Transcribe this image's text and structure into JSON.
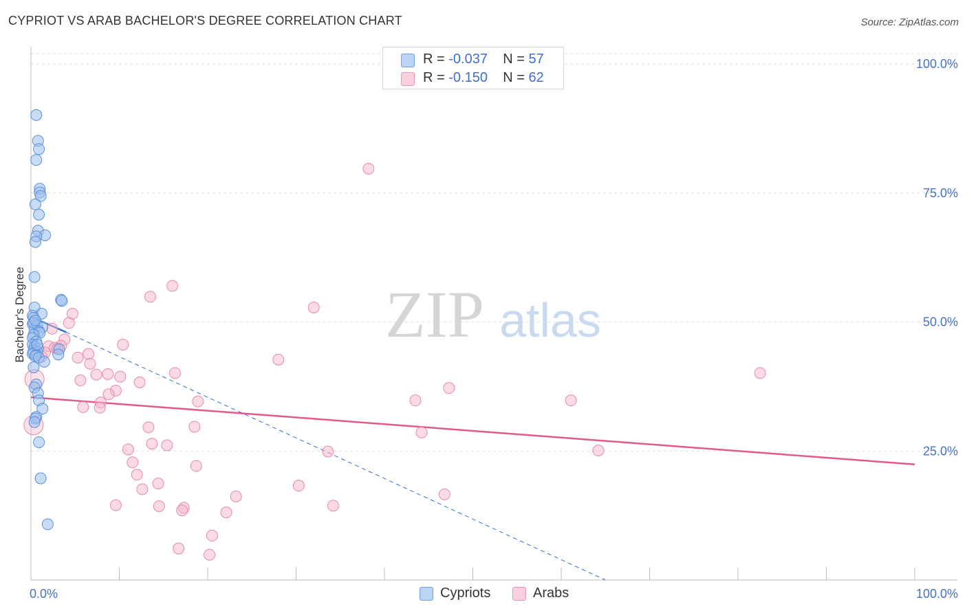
{
  "header": {
    "title": "CYPRIOT VS ARAB BACHELOR'S DEGREE CORRELATION CHART",
    "source": "Source: ZipAtlas.com"
  },
  "watermark": {
    "zip": "ZIP",
    "atlas": "atlas"
  },
  "legend": {
    "rows": [
      {
        "r_label": "R =",
        "r_value": "-0.037",
        "n_label": "N =",
        "n_value": "57",
        "color": "#9dc0ef"
      },
      {
        "r_label": "R =",
        "r_value": "-0.150",
        "n_label": "N =",
        "n_value": "62",
        "color": "#f6b6cb"
      }
    ]
  },
  "bottom_legend": {
    "cypriots": "Cypriots",
    "arabs": "Arabs"
  },
  "colors": {
    "blue_fill": "#9dc0ef",
    "blue_stroke": "#5b8fd8",
    "blue_line": "#2c6ed4",
    "pink_fill": "#f6b6cb",
    "pink_stroke": "#e58aa8",
    "pink_line": "#e05a8a",
    "tick_text": "#4472c4",
    "grid": "#dddddd"
  },
  "chart_data": {
    "type": "scatter",
    "title": "CYPRIOT VS ARAB BACHELOR'S DEGREE CORRELATION CHART",
    "xlabel": "",
    "ylabel": "Bachelor's Degree",
    "xlim": [
      0,
      100
    ],
    "ylim": [
      0,
      102
    ],
    "x_tick_labels": [
      "0.0%",
      "100.0%"
    ],
    "y_ticks": [
      25,
      50,
      75,
      100
    ],
    "y_tick_labels": [
      "25.0%",
      "50.0%",
      "75.0%",
      "100.0%"
    ],
    "series": [
      {
        "name": "Cypriots",
        "r": -0.037,
        "n": 57,
        "trend_solid": [
          [
            0,
            51.0
          ],
          [
            4,
            48.0
          ]
        ],
        "trend_dashed": [
          [
            4,
            48.0
          ],
          [
            65,
            0
          ]
        ],
        "points": [
          [
            0.6,
            90.1
          ],
          [
            0.8,
            85.1
          ],
          [
            0.9,
            83.5
          ],
          [
            0.6,
            81.4
          ],
          [
            1.0,
            75.8
          ],
          [
            1.0,
            75.1
          ],
          [
            1.1,
            74.4
          ],
          [
            0.5,
            72.8
          ],
          [
            0.9,
            70.8
          ],
          [
            0.8,
            67.7
          ],
          [
            1.6,
            66.8
          ],
          [
            0.6,
            66.6
          ],
          [
            0.5,
            65.5
          ],
          [
            0.4,
            58.7
          ],
          [
            3.4,
            54.3
          ],
          [
            3.5,
            54.1
          ],
          [
            0.4,
            52.8
          ],
          [
            1.2,
            51.6
          ],
          [
            0.2,
            51.2
          ],
          [
            0.3,
            50.8
          ],
          [
            0.2,
            49.6
          ],
          [
            0.7,
            49.3
          ],
          [
            1.3,
            49.0
          ],
          [
            0.4,
            48.6
          ],
          [
            0.9,
            48.2
          ],
          [
            1.0,
            47.9
          ],
          [
            0.3,
            47.5
          ],
          [
            0.2,
            46.9
          ],
          [
            0.6,
            46.2
          ],
          [
            0.2,
            45.6
          ],
          [
            0.4,
            45.2
          ],
          [
            0.8,
            44.8
          ],
          [
            0.3,
            44.5
          ],
          [
            0.7,
            44.2
          ],
          [
            3.2,
            44.7
          ],
          [
            0.3,
            44.0
          ],
          [
            0.2,
            43.8
          ],
          [
            0.6,
            43.6
          ],
          [
            0.5,
            43.4
          ],
          [
            0.9,
            43.1
          ],
          [
            3.1,
            43.7
          ],
          [
            1.5,
            42.3
          ],
          [
            0.3,
            41.2
          ],
          [
            0.6,
            37.9
          ],
          [
            0.4,
            37.3
          ],
          [
            0.8,
            36.2
          ],
          [
            0.9,
            34.8
          ],
          [
            1.3,
            33.2
          ],
          [
            0.6,
            31.6
          ],
          [
            0.5,
            31.3
          ],
          [
            0.4,
            30.6
          ],
          [
            0.9,
            26.7
          ],
          [
            1.1,
            19.7
          ],
          [
            1.9,
            10.8
          ],
          [
            0.3,
            49.9
          ],
          [
            0.5,
            50.3
          ],
          [
            0.7,
            45.6
          ]
        ]
      },
      {
        "name": "Arabs",
        "r": -0.15,
        "n": 62,
        "trend_solid": [
          [
            0,
            35.4
          ],
          [
            100,
            22.4
          ]
        ],
        "points": [
          [
            38.2,
            79.7
          ],
          [
            16.0,
            57.0
          ],
          [
            13.5,
            54.9
          ],
          [
            32.0,
            52.8
          ],
          [
            4.7,
            51.6
          ],
          [
            4.3,
            49.8
          ],
          [
            2.4,
            48.7
          ],
          [
            3.8,
            46.6
          ],
          [
            10.4,
            45.6
          ],
          [
            3.4,
            45.4
          ],
          [
            2.0,
            45.3
          ],
          [
            2.7,
            45.0
          ],
          [
            3.0,
            44.8
          ],
          [
            1.6,
            44.1
          ],
          [
            6.5,
            43.8
          ],
          [
            1.2,
            43.3
          ],
          [
            5.3,
            43.1
          ],
          [
            28.0,
            42.7
          ],
          [
            6.7,
            41.9
          ],
          [
            82.5,
            40.1
          ],
          [
            16.3,
            40.1
          ],
          [
            8.7,
            39.9
          ],
          [
            7.4,
            39.8
          ],
          [
            10.1,
            39.4
          ],
          [
            0.4,
            38.9
          ],
          [
            5.6,
            38.7
          ],
          [
            12.3,
            38.3
          ],
          [
            47.3,
            37.2
          ],
          [
            9.6,
            36.7
          ],
          [
            8.8,
            36.0
          ],
          [
            7.9,
            34.4
          ],
          [
            18.9,
            34.6
          ],
          [
            43.5,
            34.8
          ],
          [
            61.1,
            34.8
          ],
          [
            5.9,
            33.5
          ],
          [
            7.8,
            33.4
          ],
          [
            0.3,
            30.0
          ],
          [
            13.3,
            29.6
          ],
          [
            18.5,
            29.7
          ],
          [
            44.2,
            28.6
          ],
          [
            13.7,
            26.4
          ],
          [
            15.4,
            26.1
          ],
          [
            11.0,
            25.3
          ],
          [
            33.6,
            24.9
          ],
          [
            64.2,
            25.1
          ],
          [
            11.5,
            22.8
          ],
          [
            18.7,
            22.1
          ],
          [
            12.0,
            20.4
          ],
          [
            14.4,
            18.7
          ],
          [
            12.6,
            17.6
          ],
          [
            30.3,
            18.3
          ],
          [
            46.8,
            16.6
          ],
          [
            23.2,
            16.2
          ],
          [
            9.6,
            14.5
          ],
          [
            14.5,
            14.3
          ],
          [
            17.3,
            14.0
          ],
          [
            34.2,
            14.4
          ],
          [
            17.1,
            13.5
          ],
          [
            22.1,
            13.1
          ],
          [
            20.5,
            8.6
          ],
          [
            16.7,
            6.1
          ],
          [
            20.2,
            4.9
          ]
        ]
      }
    ]
  }
}
